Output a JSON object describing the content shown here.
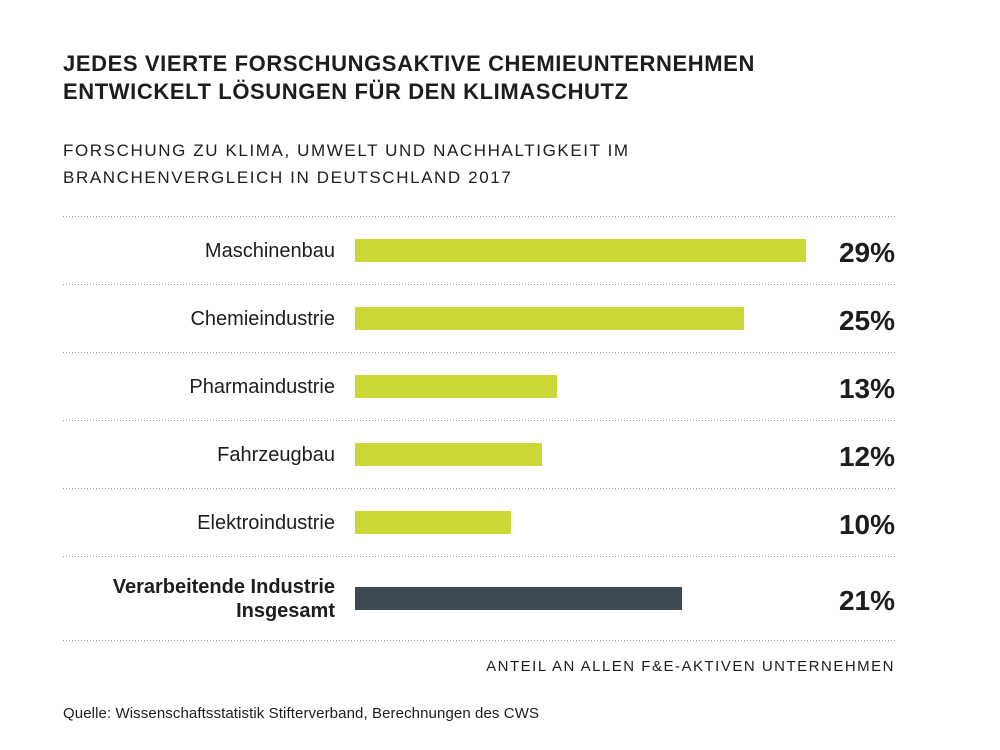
{
  "page": {
    "background": "#ffffff",
    "text_color": "#1d1d1b"
  },
  "header": {
    "title_lines": [
      "JEDES VIERTE FORSCHUNGSAKTIVE CHEMIEUNTERNEHMEN",
      "ENTWICKELT LÖSUNGEN FÜR DEN KLIMASCHUTZ"
    ],
    "subtitle_lines": [
      "FORSCHUNG ZU KLIMA, UMWELT UND NACHHALTIGKEIT IM",
      "BRANCHENVERGLEICH IN DEUTSCHLAND 2017"
    ]
  },
  "chart_data": {
    "type": "bar",
    "orientation": "horizontal",
    "title": "JEDES VIERTE FORSCHUNGSAKTIVE CHEMIEUNTERNEHMEN ENTWICKELT LÖSUNGEN FÜR DEN KLIMASCHUTZ",
    "subtitle": "FORSCHUNG ZU KLIMA, UMWELT UND NACHHALTIGKEIT IM BRANCHENVERGLEICH IN DEUTSCHLAND 2017",
    "categories": [
      "Maschinenbau",
      "Chemieindustrie",
      "Pharmaindustrie",
      "Fahrzeugbau",
      "Elektroindustrie",
      "Verarbeitende Industrie Insgesamt"
    ],
    "values": [
      29,
      25,
      13,
      12,
      10,
      21
    ],
    "value_labels": [
      "29%",
      "25%",
      "13%",
      "12%",
      "10%",
      "21%"
    ],
    "unit": "%",
    "xlim": [
      0,
      29
    ],
    "xlabel": "ANTEIL AN ALLEN F&E-AKTIVEN UNTERNEHMEN",
    "ylabel": "",
    "legend": "none",
    "grid": "dotted-row-separators",
    "colors": {
      "default_bar": "#ccd837",
      "highlight_bar": "#3f4954",
      "separator": "#9b9b9b"
    },
    "rows": [
      {
        "label_lines": [
          "Maschinenbau"
        ],
        "value": 29,
        "value_label": "29%",
        "color_key": "default_bar",
        "emphasis": false
      },
      {
        "label_lines": [
          "Chemieindustrie"
        ],
        "value": 25,
        "value_label": "25%",
        "color_key": "default_bar",
        "emphasis": false
      },
      {
        "label_lines": [
          "Pharmaindustrie"
        ],
        "value": 13,
        "value_label": "13%",
        "color_key": "default_bar",
        "emphasis": false
      },
      {
        "label_lines": [
          "Fahrzeugbau"
        ],
        "value": 12,
        "value_label": "12%",
        "color_key": "default_bar",
        "emphasis": false
      },
      {
        "label_lines": [
          "Elektroindustrie"
        ],
        "value": 10,
        "value_label": "10%",
        "color_key": "default_bar",
        "emphasis": false
      },
      {
        "label_lines": [
          "Verarbeitende Industrie",
          "Insgesamt"
        ],
        "value": 21,
        "value_label": "21%",
        "color_key": "highlight_bar",
        "emphasis": true
      }
    ],
    "source": "Quelle: Wissenschaftsstatistik Stifterverband, Berechnungen des CWS"
  }
}
